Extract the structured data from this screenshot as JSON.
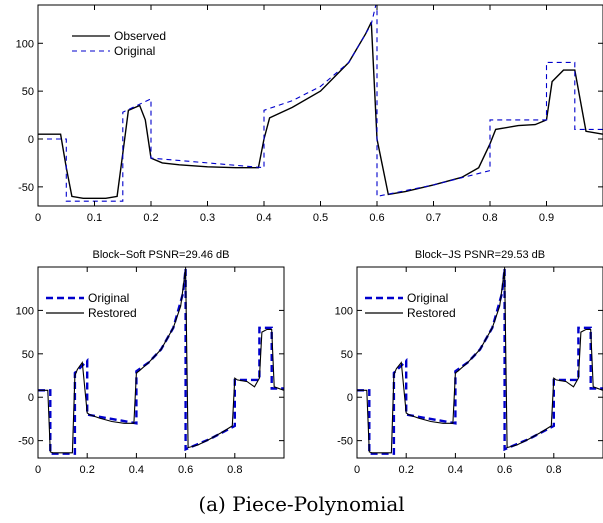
{
  "caption": "(a) Piece-Polynomial",
  "chart_data": [
    {
      "type": "line",
      "title": "",
      "xlim": [
        0,
        1
      ],
      "ylim": [
        -70,
        140
      ],
      "xticks": [
        0,
        0.1,
        0.2,
        0.3,
        0.4,
        0.5,
        0.6,
        0.7,
        0.8,
        0.9
      ],
      "yticks": [
        -50,
        0,
        50,
        100
      ],
      "legend_position": "top-left",
      "series": [
        {
          "name": "Observed",
          "style": "solid",
          "color": "#000000",
          "x": [
            0,
            0.04,
            0.05,
            0.06,
            0.08,
            0.1,
            0.12,
            0.14,
            0.15,
            0.16,
            0.18,
            0.19,
            0.2,
            0.22,
            0.25,
            0.3,
            0.35,
            0.39,
            0.4,
            0.41,
            0.45,
            0.5,
            0.55,
            0.58,
            0.59,
            0.6,
            0.62,
            0.65,
            0.7,
            0.75,
            0.78,
            0.8,
            0.81,
            0.85,
            0.88,
            0.9,
            0.91,
            0.93,
            0.95,
            0.96,
            0.97,
            1.0
          ],
          "y": [
            5,
            5,
            -30,
            -60,
            -62,
            -62,
            -62,
            -60,
            -15,
            30,
            35,
            20,
            -20,
            -25,
            -27,
            -29,
            -30,
            -30,
            0,
            22,
            33,
            50,
            80,
            110,
            122,
            0,
            -58,
            -55,
            -48,
            -40,
            -30,
            -5,
            10,
            14,
            15,
            20,
            60,
            72,
            72,
            40,
            8,
            5
          ]
        },
        {
          "name": "Original",
          "style": "dashed",
          "color": "#0000cc",
          "x": [
            0,
            0.05,
            0.05,
            0.15,
            0.15,
            0.2,
            0.2,
            0.4,
            0.4,
            0.45,
            0.5,
            0.55,
            0.59,
            0.6,
            0.6,
            0.7,
            0.8,
            0.8,
            0.9,
            0.9,
            0.95,
            0.95,
            1.0
          ],
          "y": [
            0,
            0,
            -65,
            -65,
            28,
            42,
            -20,
            -30,
            30,
            40,
            55,
            80,
            120,
            145,
            -60,
            -48,
            -33,
            20,
            20,
            80,
            80,
            10,
            10
          ]
        }
      ]
    },
    {
      "type": "line",
      "title": "Block−Soft PSNR=29.46 dB",
      "xlim": [
        0,
        1
      ],
      "ylim": [
        -70,
        150
      ],
      "xticks": [
        0,
        0.2,
        0.4,
        0.6,
        0.8
      ],
      "yticks": [
        -50,
        0,
        50,
        100
      ],
      "legend_position": "top-left",
      "series": [
        {
          "name": "Original",
          "style": "dashed",
          "color": "#0000cc",
          "x": [
            0,
            0.05,
            0.05,
            0.15,
            0.15,
            0.2,
            0.2,
            0.4,
            0.4,
            0.45,
            0.5,
            0.55,
            0.59,
            0.6,
            0.6,
            0.7,
            0.8,
            0.8,
            0.9,
            0.9,
            0.95,
            0.95,
            1.0
          ],
          "y": [
            8,
            8,
            -65,
            -65,
            28,
            42,
            -20,
            -30,
            30,
            40,
            55,
            80,
            120,
            148,
            -60,
            -48,
            -33,
            20,
            20,
            80,
            80,
            10,
            10
          ]
        },
        {
          "name": "Restored",
          "style": "solid",
          "color": "#000000",
          "x": [
            0,
            0.04,
            0.05,
            0.06,
            0.1,
            0.14,
            0.15,
            0.16,
            0.18,
            0.2,
            0.21,
            0.25,
            0.3,
            0.35,
            0.39,
            0.4,
            0.41,
            0.45,
            0.5,
            0.55,
            0.58,
            0.6,
            0.61,
            0.65,
            0.7,
            0.75,
            0.79,
            0.8,
            0.81,
            0.85,
            0.88,
            0.9,
            0.91,
            0.93,
            0.95,
            0.96,
            1.0
          ],
          "y": [
            8,
            8,
            -63,
            -64,
            -64,
            -64,
            25,
            32,
            40,
            -18,
            -20,
            -24,
            -28,
            -30,
            -30,
            28,
            30,
            40,
            55,
            80,
            105,
            148,
            -58,
            -55,
            -48,
            -40,
            -33,
            22,
            20,
            18,
            12,
            22,
            75,
            78,
            78,
            12,
            8
          ]
        }
      ]
    },
    {
      "type": "line",
      "title": "Block−JS PSNR=29.53 dB",
      "xlim": [
        0,
        1
      ],
      "ylim": [
        -70,
        150
      ],
      "xticks": [
        0,
        0.2,
        0.4,
        0.6,
        0.8
      ],
      "yticks": [
        -50,
        0,
        50,
        100
      ],
      "legend_position": "top-left",
      "series": [
        {
          "name": "Original",
          "style": "dashed",
          "color": "#0000cc",
          "x": [
            0,
            0.05,
            0.05,
            0.15,
            0.15,
            0.2,
            0.2,
            0.4,
            0.4,
            0.45,
            0.5,
            0.55,
            0.59,
            0.6,
            0.6,
            0.7,
            0.8,
            0.8,
            0.9,
            0.9,
            0.95,
            0.95,
            1.0
          ],
          "y": [
            8,
            8,
            -65,
            -65,
            28,
            42,
            -20,
            -30,
            30,
            40,
            55,
            80,
            120,
            148,
            -60,
            -48,
            -33,
            20,
            20,
            80,
            80,
            10,
            10
          ]
        },
        {
          "name": "Restored",
          "style": "solid",
          "color": "#000000",
          "x": [
            0,
            0.04,
            0.05,
            0.06,
            0.1,
            0.14,
            0.15,
            0.16,
            0.18,
            0.2,
            0.21,
            0.25,
            0.3,
            0.35,
            0.39,
            0.4,
            0.41,
            0.45,
            0.5,
            0.55,
            0.58,
            0.6,
            0.61,
            0.65,
            0.7,
            0.75,
            0.79,
            0.8,
            0.81,
            0.85,
            0.88,
            0.9,
            0.91,
            0.93,
            0.95,
            0.96,
            1.0
          ],
          "y": [
            8,
            8,
            -63,
            -64,
            -64,
            -64,
            26,
            33,
            40,
            -18,
            -20,
            -24,
            -28,
            -30,
            -30,
            28,
            30,
            40,
            55,
            80,
            105,
            148,
            -58,
            -55,
            -48,
            -40,
            -33,
            22,
            20,
            18,
            12,
            22,
            75,
            78,
            78,
            12,
            8
          ]
        }
      ]
    }
  ]
}
